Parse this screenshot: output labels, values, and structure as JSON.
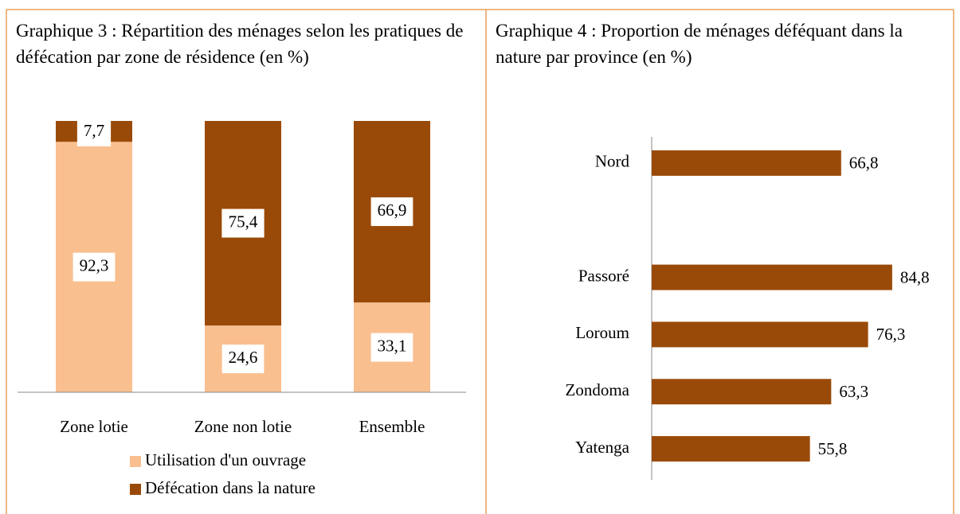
{
  "chart_data": [
    {
      "type": "stacked_bar",
      "title": "Graphique 3 : Répartition des ménages selon les pratiques de défécation par zone de résidence (en %)",
      "categories": [
        "Zone lotie",
        "Zone non lotie",
        "Ensemble"
      ],
      "series": [
        {
          "name": "Utilisation d'un ouvrage",
          "color": "#f9bf8f",
          "values": [
            92.3,
            24.6,
            33.1
          ],
          "value_labels": [
            "92,3",
            "24,6",
            "33,1"
          ]
        },
        {
          "name": "Défécation dans la nature",
          "color": "#9a4a08",
          "values": [
            7.7,
            75.4,
            66.9
          ],
          "value_labels": [
            "7,7",
            "75,4",
            "66,9"
          ]
        }
      ],
      "ylim": [
        0,
        100
      ]
    },
    {
      "type": "hbar",
      "title": "Graphique 4 : Proportion de ménages déféquant dans la nature par province (en %)",
      "categories": [
        "Nord",
        null,
        "Passoré",
        "Loroum",
        "Zondoma",
        "Yatenga"
      ],
      "values": [
        66.8,
        null,
        84.8,
        76.3,
        63.3,
        55.8
      ],
      "value_labels": [
        "66,8",
        null,
        "84,8",
        "76,3",
        "63,3",
        "55,8"
      ],
      "color": "#9a4a08",
      "xlim": [
        0,
        100
      ]
    }
  ]
}
